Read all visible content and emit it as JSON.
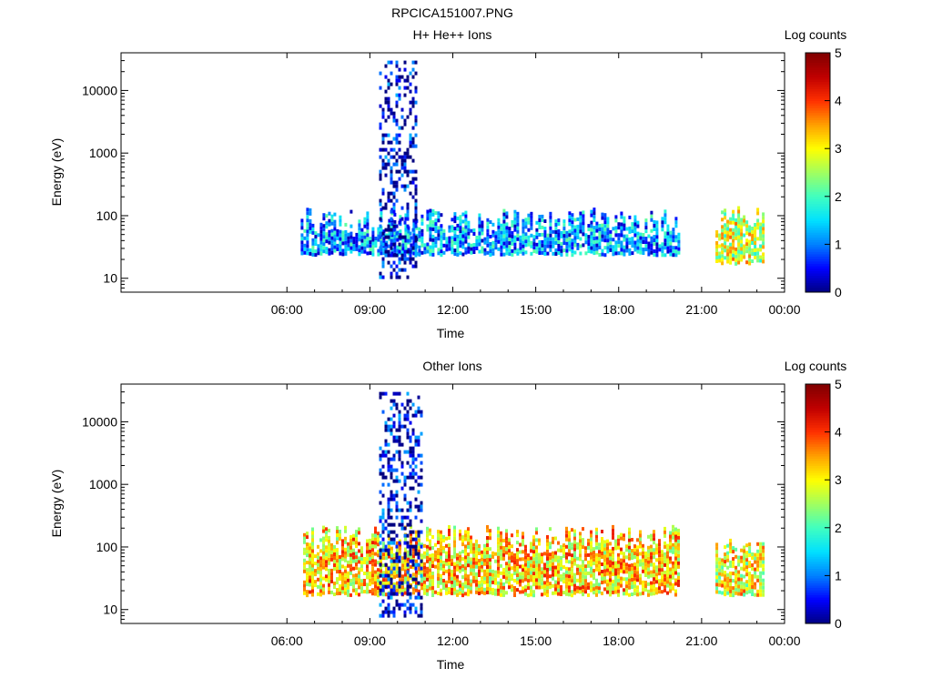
{
  "figure": {
    "title": "RPCICA151007.PNG"
  },
  "colorbar": {
    "label": "Log counts",
    "ticks": [
      "0",
      "1",
      "2",
      "3",
      "4",
      "5"
    ],
    "colors": [
      "#000080",
      "#0000ff",
      "#0080ff",
      "#00e0ff",
      "#40ffc0",
      "#a0ff60",
      "#ffff00",
      "#ffa000",
      "#ff3000",
      "#c00000",
      "#800000"
    ]
  },
  "chart_data": [
    {
      "type": "heatmap",
      "title": "H+ He++ Ions",
      "xlabel": "Time",
      "ylabel": "Energy (eV)",
      "x_ticks": [
        "06:00",
        "09:00",
        "12:00",
        "15:00",
        "18:00",
        "21:00",
        "00:00"
      ],
      "y_ticks": [
        "10",
        "100",
        "1000",
        "10000"
      ],
      "x_range_hours": [
        0,
        24
      ],
      "y_range_eV": [
        6,
        40000
      ],
      "y_scale": "log",
      "colorbar_label": "Log counts",
      "colorbar_range": [
        0,
        5
      ],
      "data_blocks": [
        {
          "start": "06:30",
          "end": "20:10",
          "emin_eV": 25,
          "emax_eV": 90,
          "level": 1.2
        },
        {
          "start": "09:20",
          "end": "10:40",
          "emin_eV": 10,
          "emax_eV": 30000,
          "level": 0.3
        },
        {
          "start": "21:30",
          "end": "23:15",
          "emin_eV": 18,
          "emax_eV": 95,
          "level": 2.8
        }
      ]
    },
    {
      "type": "heatmap",
      "title": "Other Ions",
      "xlabel": "Time",
      "ylabel": "Energy (eV)",
      "x_ticks": [
        "06:00",
        "09:00",
        "12:00",
        "15:00",
        "18:00",
        "21:00",
        "00:00"
      ],
      "y_ticks": [
        "10",
        "100",
        "1000",
        "10000"
      ],
      "x_range_hours": [
        0,
        24
      ],
      "y_range_eV": [
        6,
        40000
      ],
      "y_scale": "log",
      "colorbar_label": "Log counts",
      "colorbar_range": [
        0,
        5
      ],
      "data_blocks": [
        {
          "start": "06:35",
          "end": "20:10",
          "emin_eV": 18,
          "emax_eV": 150,
          "level": 3.2
        },
        {
          "start": "09:20",
          "end": "10:50",
          "emin_eV": 8,
          "emax_eV": 30000,
          "level": 0.3
        },
        {
          "start": "21:30",
          "end": "23:15",
          "emin_eV": 18,
          "emax_eV": 95,
          "level": 3.0
        }
      ]
    }
  ]
}
